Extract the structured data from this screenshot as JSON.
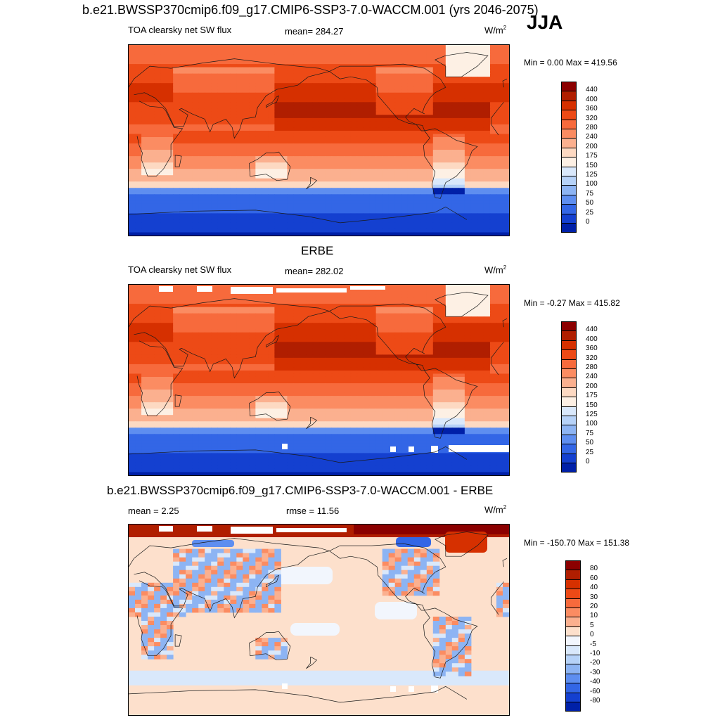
{
  "header": {
    "title": "b.e21.BWSSP370cmip6.f09_g17.CMIP6-SSP3-7.0-WACCM.001 (yrs 2046-2075)",
    "season": "JJA"
  },
  "panels": [
    {
      "id": "model",
      "variable": "TOA clearsky net SW flux",
      "stat": "mean= 284.27",
      "units": "W/m",
      "units_exp": "2",
      "minmax": "Min =   0.00 Max = 419.56",
      "colorbar_labels": [
        "440",
        "400",
        "360",
        "320",
        "280",
        "240",
        "200",
        "175",
        "150",
        "125",
        "100",
        "75",
        "50",
        "25",
        "0"
      ],
      "colorbar_colors": [
        "#8b0000",
        "#b01e00",
        "#d63000",
        "#ed4a16",
        "#f76a3c",
        "#fb8c62",
        "#fbb08f",
        "#fdd9c2",
        "#fdf0e4",
        "#d9e8fb",
        "#b6d2f8",
        "#8db4f3",
        "#5e8ef0",
        "#3366e6",
        "#1440d0",
        "#0020a8"
      ],
      "missing_data": false
    },
    {
      "id": "obs",
      "title": "ERBE",
      "variable": "TOA clearsky net SW flux",
      "stat": "mean= 282.02",
      "units": "W/m",
      "units_exp": "2",
      "minmax": "Min =  -0.27 Max = 415.82",
      "colorbar_labels": [
        "440",
        "400",
        "360",
        "320",
        "280",
        "240",
        "200",
        "175",
        "150",
        "125",
        "100",
        "75",
        "50",
        "25",
        "0"
      ],
      "colorbar_colors": [
        "#8b0000",
        "#b01e00",
        "#d63000",
        "#ed4a16",
        "#f76a3c",
        "#fb8c62",
        "#fbb08f",
        "#fdd9c2",
        "#fdf0e4",
        "#d9e8fb",
        "#b6d2f8",
        "#8db4f3",
        "#5e8ef0",
        "#3366e6",
        "#1440d0",
        "#0020a8"
      ],
      "missing_data": true
    },
    {
      "id": "diff",
      "title": "b.e21.BWSSP370cmip6.f09_g17.CMIP6-SSP3-7.0-WACCM.001 - ERBE",
      "stat": "mean =   2.25",
      "stat2": "rmse =  11.56",
      "units": "W/m",
      "units_exp": "2",
      "minmax": "Min = -150.70 Max = 151.38",
      "colorbar_labels": [
        "80",
        "60",
        "40",
        "30",
        "20",
        "10",
        "5",
        "0",
        "-5",
        "-10",
        "-20",
        "-30",
        "-40",
        "-60",
        "-80"
      ],
      "colorbar_colors": [
        "#8b0000",
        "#b01e00",
        "#d63000",
        "#ed4a16",
        "#f76a3c",
        "#fb8c62",
        "#fbb08f",
        "#fde0cc",
        "#f2f6fd",
        "#d9e8fb",
        "#b6d2f8",
        "#8db4f3",
        "#5e8ef0",
        "#3366e6",
        "#1440d0",
        "#0020a8"
      ],
      "missing_data": true
    }
  ]
}
